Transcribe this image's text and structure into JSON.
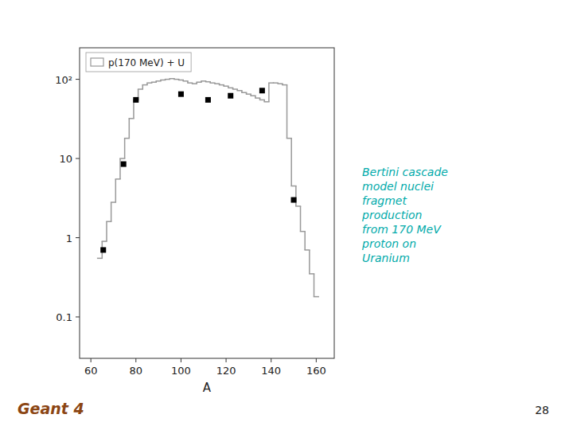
{
  "chart_data": {
    "type": "histogram",
    "x_label": "A",
    "log": "y",
    "grid": false,
    "legend": "upper left",
    "xlim": [
      55,
      168
    ],
    "xticks": [
      60,
      80,
      100,
      120,
      140,
      160
    ],
    "ylim": [
      0.03,
      250
    ],
    "yticks": [
      0.1,
      1,
      10,
      {
        "value": 100,
        "label": "10²"
      }
    ],
    "series": [
      {
        "name": "p(170 MeV) + U",
        "type": "histogram",
        "color": "#999999",
        "bins": [
          63,
          65,
          67,
          69,
          71,
          73,
          75,
          77,
          79,
          81,
          83,
          85,
          87,
          89,
          91,
          93,
          95,
          97,
          99,
          101,
          103,
          105,
          107,
          109,
          111,
          113,
          115,
          117,
          119,
          121,
          123,
          125,
          127,
          129,
          131,
          133,
          135,
          137,
          139,
          141,
          143,
          145,
          147,
          149,
          151,
          153,
          155,
          157,
          159,
          161
        ],
        "values": [
          0.55,
          0.9,
          1.6,
          2.8,
          5.5,
          10.0,
          18.0,
          32.0,
          55.0,
          75.0,
          85.0,
          90.0,
          92.0,
          95.0,
          98.0,
          100.0,
          102.0,
          100.0,
          98.0,
          95.0,
          90.0,
          88.0,
          92.0,
          95.0,
          93.0,
          90.0,
          88.0,
          85.0,
          82.0,
          78.0,
          75.0,
          72.0,
          68.0,
          65.0,
          62.0,
          58.0,
          55.0,
          52.0,
          90.0,
          90.0,
          88.0,
          85.0,
          18.0,
          4.5,
          2.5,
          1.2,
          0.7,
          0.35,
          0.18
        ]
      },
      {
        "type": "scatter",
        "color": "black",
        "marker": "square",
        "x": [
          65.5,
          74.5,
          80.0,
          100.0,
          112.0,
          122.0,
          136.0,
          150.0
        ],
        "values": [
          0.7,
          8.5,
          55.0,
          65.0,
          55.0,
          62.0,
          72.0,
          3.0
        ]
      }
    ],
    "annotations": [
      {
        "text": "Bertini cascade\nmodel nuclei\nfragmet\nproduction\nfrom 170 MeV\nproton on\nUranium",
        "color": "#00AAAA"
      },
      {
        "text": "Geant 4",
        "color": "#8B4513"
      },
      {
        "text": "28"
      }
    ]
  }
}
